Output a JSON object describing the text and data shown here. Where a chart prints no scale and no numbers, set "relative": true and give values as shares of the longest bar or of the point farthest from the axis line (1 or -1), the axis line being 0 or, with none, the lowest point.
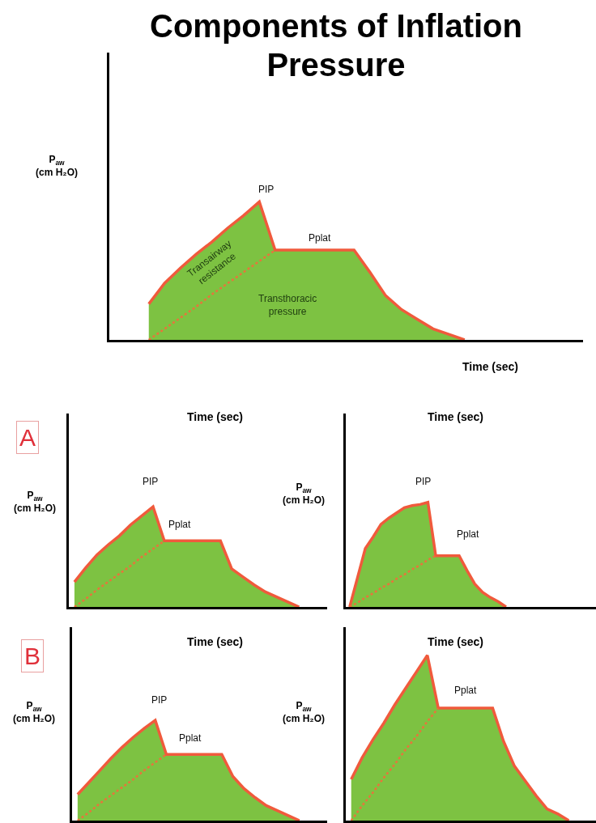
{
  "chart_data": [
    {
      "type": "area",
      "title": "Components of Inflation Pressure",
      "xlabel": "Time (sec)",
      "ylabel": "P$_{aw}$\n(cm H₂O)",
      "relative": true,
      "categories": [
        null,
        null,
        null,
        null,
        null,
        null,
        null,
        null,
        null,
        null,
        null,
        null,
        null,
        null,
        null,
        null,
        null,
        null,
        null,
        null,
        null,
        null,
        null,
        null,
        null,
        null,
        null,
        null,
        null,
        null
      ],
      "series": [
        {
          "type": "area",
          "color": "#7dc242",
          "values": [
            null,
            null,
            0.26,
            0.41,
            0.52,
            0.62,
            0.71,
            0.81,
            0.9,
            1,
            0.65,
            0.65,
            0.65,
            0.65,
            0.65,
            0.65,
            0.49,
            0.32,
            0.22,
            0.15,
            0.08,
            0.04,
            0,
            null,
            null,
            null,
            null,
            null,
            null,
            null
          ]
        },
        {
          "type": "line",
          "color": "#e8743b",
          "line_style": "dotted",
          "values": [
            null,
            null,
            0,
            0.08,
            0.16,
            0.24,
            0.33,
            0.41,
            0.49,
            0.57,
            0.65,
            null,
            null,
            null,
            null,
            null,
            null,
            null,
            null,
            null,
            null,
            null,
            null,
            null,
            null,
            null,
            null,
            null,
            null,
            null
          ]
        }
      ],
      "annotations": [
        "PIP",
        "Pplat",
        "Transairway\nresistance",
        "Transthoracic\npressure"
      ]
    },
    {
      "type": "area",
      "xlabel": "Time (sec)",
      "ylabel": "P$_{aw}$\n(cm H₂O)",
      "relative": true,
      "categories": [
        null,
        null,
        null,
        null,
        null,
        null,
        null,
        null,
        null,
        null,
        null,
        null,
        null,
        null,
        null,
        null,
        null,
        null,
        null,
        null,
        null,
        null,
        null
      ],
      "series": [
        {
          "type": "area",
          "color": "#7dc242",
          "values": [
            0.25,
            0.39,
            0.52,
            0.62,
            0.71,
            0.82,
            0.91,
            1,
            0.66,
            0.66,
            0.66,
            0.66,
            0.66,
            0.66,
            0.38,
            0.3,
            0.22,
            0.15,
            0.1,
            0.05,
            0,
            null,
            null
          ]
        },
        {
          "type": "line",
          "color": "#e8743b",
          "line_style": "dotted",
          "values": [
            0,
            0.08,
            0.17,
            0.25,
            0.33,
            0.41,
            0.5,
            0.58,
            0.66,
            null,
            null,
            null,
            null,
            null,
            null,
            null,
            null,
            null,
            null,
            null,
            null,
            null,
            null
          ]
        }
      ],
      "annotations": [
        "A",
        "PIP",
        "Pplat"
      ]
    },
    {
      "type": "area",
      "xlabel": "Time (sec)",
      "ylabel": "P$_{aw}$\n(cm H₂O)",
      "relative": true,
      "categories": [
        null,
        null,
        null,
        null,
        null,
        null,
        null,
        null,
        null,
        null,
        null,
        null,
        null,
        null,
        null,
        null,
        null,
        null,
        null,
        null,
        null,
        null,
        null,
        null,
        null,
        null,
        null,
        null,
        null,
        null,
        null,
        null
      ],
      "series": [
        {
          "type": "area",
          "color": "#7dc242",
          "values": [
            0,
            0.28,
            0.56,
            0.67,
            0.79,
            0.85,
            0.9,
            0.95,
            0.97,
            0.98,
            1,
            0.49,
            0.49,
            0.49,
            0.49,
            0.35,
            0.22,
            0.14,
            0.09,
            0.05,
            0,
            null,
            null,
            null,
            null,
            null,
            null,
            null,
            null,
            null,
            null,
            null
          ]
        },
        {
          "type": "line",
          "color": "#e8743b",
          "line_style": "dotted",
          "values": [
            0,
            0.04,
            0.09,
            0.13,
            0.18,
            0.22,
            0.27,
            0.31,
            0.36,
            0.4,
            0.45,
            0.49,
            null,
            null,
            null,
            null,
            null,
            null,
            null,
            null,
            null,
            null,
            null,
            null,
            null,
            null,
            null,
            null,
            null,
            null,
            null,
            null
          ]
        }
      ],
      "annotations": [
        "PIP",
        "Pplat"
      ]
    },
    {
      "type": "area",
      "xlabel": "Time (sec)",
      "ylabel": "P$_{aw}$\n(cm H₂O)",
      "relative": true,
      "categories": [
        null,
        null,
        null,
        null,
        null,
        null,
        null,
        null,
        null,
        null,
        null,
        null,
        null,
        null,
        null,
        null,
        null,
        null,
        null,
        null,
        null,
        null,
        null
      ],
      "series": [
        {
          "type": "area",
          "color": "#7dc242",
          "values": [
            0.26,
            0.38,
            0.5,
            0.62,
            0.73,
            0.83,
            0.92,
            1,
            0.66,
            0.66,
            0.66,
            0.66,
            0.66,
            0.66,
            0.44,
            0.32,
            0.23,
            0.15,
            0.1,
            0.05,
            0,
            null,
            null
          ]
        },
        {
          "type": "line",
          "color": "#e8743b",
          "line_style": "dotted",
          "values": [
            0,
            0.08,
            0.17,
            0.25,
            0.33,
            0.41,
            0.5,
            0.58,
            0.66,
            null,
            null,
            null,
            null,
            null,
            null,
            null,
            null,
            null,
            null,
            null,
            null,
            null,
            null
          ]
        }
      ],
      "annotations": [
        "B",
        "PIP",
        "Pplat"
      ]
    },
    {
      "type": "area",
      "xlabel": "Time (sec)",
      "ylabel": "P$_{aw}$\n(cm H₂O)",
      "relative": true,
      "categories": [
        null,
        null,
        null,
        null,
        null,
        null,
        null,
        null,
        null,
        null,
        null,
        null,
        null,
        null,
        null,
        null,
        null,
        null,
        null,
        null,
        null,
        null,
        null
      ],
      "series": [
        {
          "type": "area",
          "color": "#7dc242",
          "values": [
            0.25,
            0.38,
            0.49,
            0.59,
            0.7,
            0.8,
            0.9,
            1,
            0.68,
            0.68,
            0.68,
            0.68,
            0.68,
            0.68,
            0.48,
            0.33,
            0.24,
            0.15,
            0.07,
            0.04,
            0,
            null,
            null
          ]
        },
        {
          "type": "line",
          "color": "#e8743b",
          "line_style": "dotted",
          "values": [
            0,
            0.09,
            0.17,
            0.26,
            0.34,
            0.43,
            0.51,
            0.6,
            0.68,
            null,
            null,
            null,
            null,
            null,
            null,
            null,
            null,
            null,
            null,
            null,
            null,
            null,
            null
          ]
        }
      ],
      "annotations": [
        "Pplat"
      ]
    }
  ]
}
